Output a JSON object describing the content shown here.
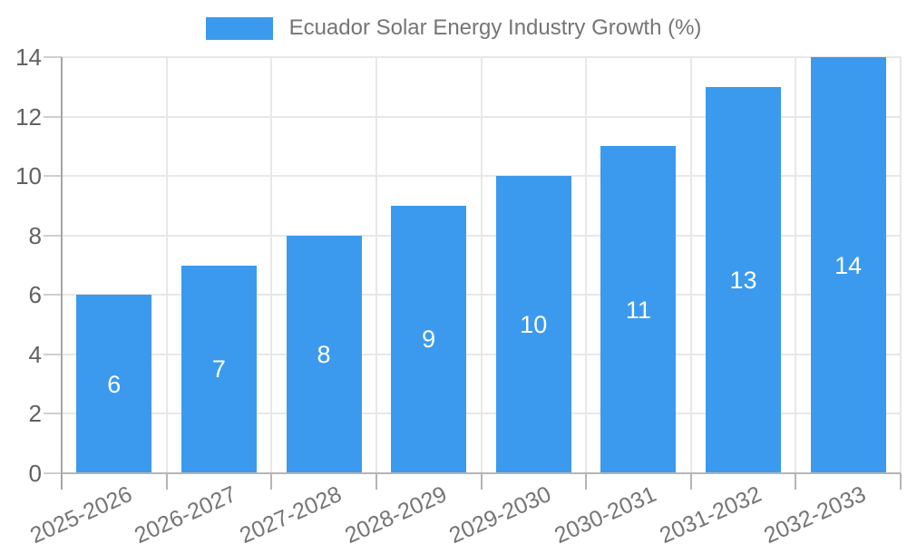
{
  "legend": {
    "label": "Ecuador Solar Energy Industry Growth (%)"
  },
  "colors": {
    "bar": "#3B9AEE",
    "grid": "#E8E8E8",
    "y_tick": "#CFCFCF",
    "x_tick": "#B5B5B5",
    "y_axis": "#A6A6A6",
    "x_axis": "#B5B5B5",
    "y_label_text": "#616161",
    "x_label_text": "#757575",
    "legend_text": "#757575",
    "value_label_text": "#FFFFFF",
    "background": "#FFFFFF"
  },
  "chart_data": {
    "type": "bar",
    "title": "Ecuador Solar Energy Industry Growth (%)",
    "categories": [
      "2025-2026",
      "2026-2027",
      "2027-2028",
      "2028-2029",
      "2029-2030",
      "2030-2031",
      "2031-2032",
      "2032-2033"
    ],
    "values": [
      6,
      7,
      8,
      9,
      10,
      11,
      13,
      14
    ],
    "xlabel": "",
    "ylabel": "",
    "ylim": [
      0,
      14
    ],
    "yticks": [
      0,
      2,
      4,
      6,
      8,
      10,
      12,
      14
    ],
    "grid": true,
    "legend_position": "top",
    "value_label_position": "inside-center"
  }
}
